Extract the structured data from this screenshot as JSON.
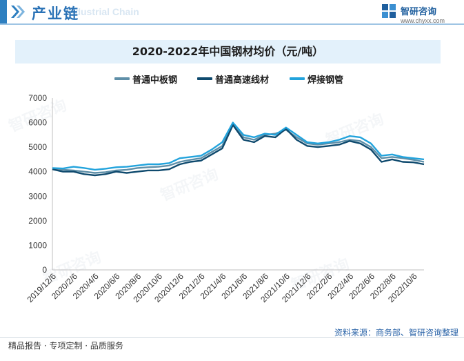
{
  "header": {
    "title": "产业链",
    "title_en": "Industrial Chain",
    "brand_name": "智研咨询",
    "brand_url": "www.chyxx.com"
  },
  "watermark_text": "智研咨询",
  "source": "资料来源：商务部、智研咨询整理",
  "footer": "精品报告 · 专项定制 · 品质服务",
  "colors": {
    "series1": "#5f8fa8",
    "series2": "#0f4a6e",
    "series3": "#22a3dc",
    "accent": "#2a72b6"
  },
  "chart_data": {
    "type": "line",
    "title": "2020-2022年中国钢材均价（元/吨）",
    "ylim": [
      0,
      7000
    ],
    "yticks": [
      0,
      1000,
      2000,
      3000,
      4000,
      5000,
      6000,
      7000
    ],
    "x_tick_labels": [
      "2019/12/6",
      "2020/2/6",
      "2020/4/6",
      "2020/6/6",
      "2020/8/6",
      "2020/10/6",
      "2020/12/6",
      "2021/2/6",
      "2021/4/6",
      "2021/6/6",
      "2021/8/6",
      "2021/10/6",
      "2021/12/6",
      "2022/2/6",
      "2022/4/6",
      "2022/6/6",
      "2022/8/6",
      "2022/10/6"
    ],
    "x": [
      "2019/12/6",
      "2020/1/6",
      "2020/2/6",
      "2020/3/6",
      "2020/4/6",
      "2020/5/6",
      "2020/6/6",
      "2020/7/6",
      "2020/8/6",
      "2020/9/6",
      "2020/10/6",
      "2020/11/6",
      "2020/12/6",
      "2021/1/6",
      "2021/2/6",
      "2021/3/6",
      "2021/4/6",
      "2021/5/6",
      "2021/6/6",
      "2021/7/6",
      "2021/8/6",
      "2021/9/6",
      "2021/10/6",
      "2021/11/6",
      "2021/12/6",
      "2022/1/6",
      "2022/2/6",
      "2022/3/6",
      "2022/4/6",
      "2022/5/6",
      "2022/6/6",
      "2022/7/6",
      "2022/8/6",
      "2022/9/6",
      "2022/10/6",
      "2022/11/6"
    ],
    "series": [
      {
        "name": "普通中板钢",
        "color": "#5f8fa8",
        "values": [
          4120,
          4080,
          4050,
          4000,
          3950,
          3980,
          4050,
          4080,
          4150,
          4180,
          4200,
          4250,
          4400,
          4480,
          4550,
          4800,
          5050,
          5950,
          5400,
          5300,
          5500,
          5550,
          5700,
          5400,
          5150,
          5100,
          5150,
          5200,
          5300,
          5250,
          5000,
          4550,
          4600,
          4550,
          4480,
          4400
        ]
      },
      {
        "name": "普通高速线材",
        "color": "#0f4a6e",
        "values": [
          4100,
          4000,
          4000,
          3900,
          3850,
          3900,
          4000,
          3950,
          4000,
          4050,
          4050,
          4100,
          4300,
          4400,
          4450,
          4700,
          4950,
          5900,
          5300,
          5200,
          5450,
          5400,
          5750,
          5300,
          5050,
          5000,
          5050,
          5100,
          5250,
          5150,
          4900,
          4400,
          4500,
          4400,
          4380,
          4300
        ]
      },
      {
        "name": "焊接钢管",
        "color": "#22a3dc",
        "values": [
          4150,
          4130,
          4200,
          4150,
          4080,
          4120,
          4180,
          4200,
          4250,
          4300,
          4300,
          4350,
          4550,
          4600,
          4650,
          4900,
          5200,
          6000,
          5500,
          5400,
          5550,
          5500,
          5800,
          5500,
          5200,
          5150,
          5200,
          5300,
          5450,
          5400,
          5150,
          4650,
          4700,
          4600,
          4550,
          4500
        ]
      }
    ],
    "legend_position": "top",
    "grid": false
  }
}
